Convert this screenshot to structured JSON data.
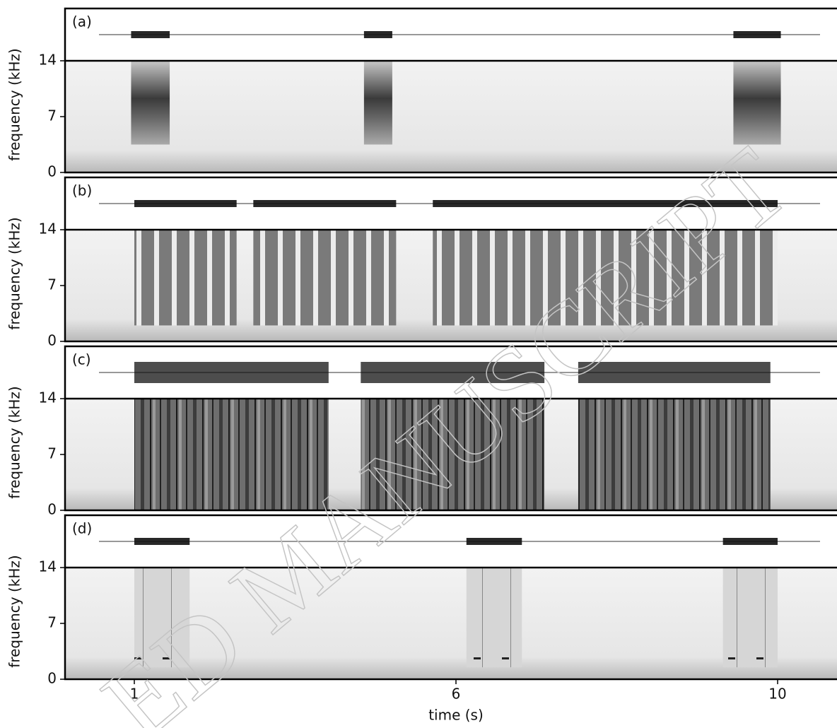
{
  "chart_data": [
    {
      "type": "spectrogram",
      "panel_label": "(a)",
      "ylabel": "frequency (kHz)",
      "ylim": [
        0,
        14
      ],
      "yticks": [
        0,
        7,
        14
      ],
      "xlim": [
        -0.08,
        10.74
      ],
      "call_band": [
        3.5,
        14
      ],
      "calls": [
        [
          0.95,
          1.55
        ],
        [
          4.57,
          5.01
        ],
        [
          9.45,
          10.04
        ]
      ]
    },
    {
      "type": "spectrogram",
      "panel_label": "(b)",
      "ylabel": "frequency (kHz)",
      "ylim": [
        0,
        14
      ],
      "yticks": [
        0,
        7,
        14
      ],
      "xlim": [
        -0.08,
        10.74
      ],
      "call_band": [
        2,
        14
      ],
      "calls": [
        [
          1.0,
          2.59
        ],
        [
          2.85,
          5.07
        ],
        [
          5.64,
          10.0
        ]
      ]
    },
    {
      "type": "spectrogram",
      "panel_label": "(c)",
      "ylabel": "frequency (kHz)",
      "ylim": [
        0,
        14
      ],
      "yticks": [
        0,
        7,
        14
      ],
      "xlim": [
        -0.08,
        10.74
      ],
      "call_band": [
        0,
        14
      ],
      "calls": [
        [
          1.0,
          4.02
        ],
        [
          4.52,
          7.1
        ],
        [
          7.52,
          9.91
        ]
      ]
    },
    {
      "type": "spectrogram",
      "panel_label": "(d)",
      "ylabel": "frequency (kHz)",
      "ylim": [
        0,
        14
      ],
      "yticks": [
        0,
        7,
        14
      ],
      "xlim": [
        -0.08,
        10.74
      ],
      "call_band": [
        1.5,
        14
      ],
      "calls": [
        [
          1.0,
          1.86
        ],
        [
          6.13,
          6.82
        ],
        [
          9.32,
          10.0
        ]
      ],
      "xticks": [
        1,
        6,
        10
      ],
      "xlabel": "time (s)"
    }
  ],
  "watermark": "ED MANUSCRIPT"
}
